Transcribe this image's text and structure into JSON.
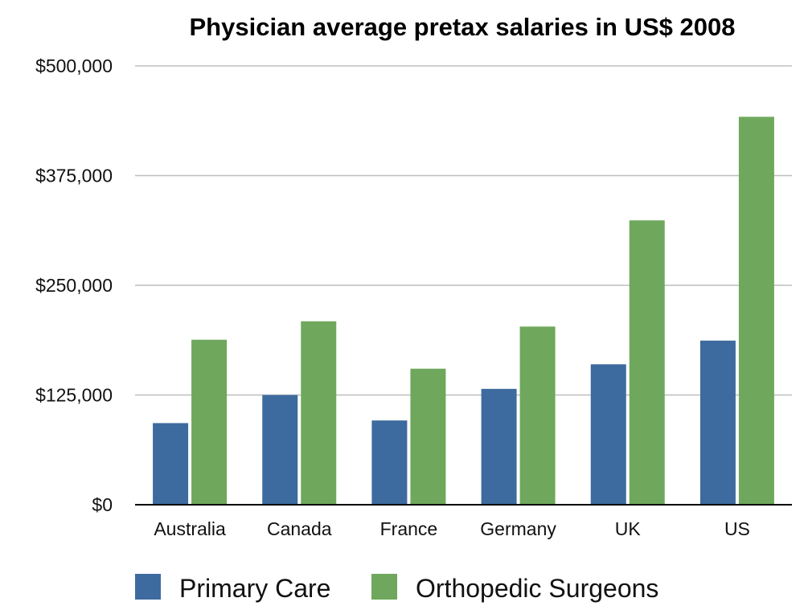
{
  "chart_data": {
    "type": "bar",
    "title": "Physician average pretax salaries in US$ 2008",
    "xlabel": "",
    "ylabel": "",
    "categories": [
      "Australia",
      "Canada",
      "France",
      "Germany",
      "UK",
      "US"
    ],
    "series": [
      {
        "name": "Primary Care",
        "color": "#3d6b9f",
        "values": [
          93000,
          125000,
          96000,
          132000,
          160000,
          187000
        ]
      },
      {
        "name": "Orthopedic Surgeons",
        "color": "#6fa85c",
        "values": [
          188000,
          209000,
          155000,
          203000,
          324000,
          442000
        ]
      }
    ],
    "ylim": [
      0,
      500000
    ],
    "yticks": [
      0,
      125000,
      250000,
      375000,
      500000
    ],
    "ytick_labels": [
      "$0",
      "$125,000",
      "$250,000",
      "$375,000",
      "$500,000"
    ],
    "grid": true,
    "legend_position": "bottom"
  }
}
